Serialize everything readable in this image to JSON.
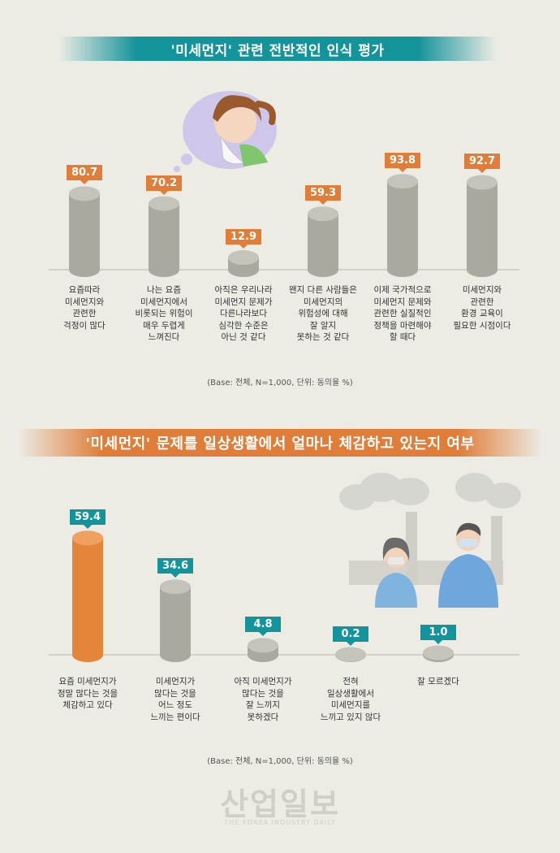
{
  "section1": {
    "title": "'미세먼지' 관련 전반적인 인식 평가",
    "footnote": "(Base: 전체, N=1,000, 단위: 동의율 %)"
  },
  "section2": {
    "title": "'미세먼지' 문제를 일상생활에서 얼마나 체감하고 있는지 여부",
    "footnote": "(Base: 전체, N=1,000, 단위: 동의율 %)"
  },
  "logo": {
    "main": "산업일보",
    "sub": "THE KOREA INDUSTRY DAILY"
  },
  "colors": {
    "teal": "#13939a",
    "orange": "#e07d38",
    "bar_gray": "#a9a99f",
    "bar_gray_top": "#c4c4bb",
    "bar_orange": "#e5853a",
    "bar_orange_top": "#f0a060"
  },
  "chart_data": [
    {
      "type": "bar",
      "title": "'미세먼지' 관련 전반적인 인식 평가",
      "unit": "동의율 %",
      "categories": [
        "요즘따라\n미세먼지와\n관련한\n걱정이 많다",
        "나는 요즘\n미세먼지에서\n비롯되는 위험이\n매우 두렵게\n느껴진다",
        "아직은 우리나라\n미세먼지 문제가\n다른나라보다\n심각한 수준은\n아닌 것 같다",
        "왠지 다른 사람들은\n미세먼지의\n위험성에 대해\n잘 알지\n못하는 것 같다",
        "이제 국가적으로\n미세먼지 문제와\n관련한 실질적인\n정책을 마련해야\n할 때다",
        "미세먼지와\n관련한\n환경 교육이\n필요한 시점이다"
      ],
      "values": [
        80.7,
        70.2,
        12.9,
        59.3,
        93.8,
        92.7
      ],
      "value_labels": [
        "80.7",
        "70.2",
        "12.9",
        "59.3",
        "93.8",
        "92.7"
      ],
      "ylim": [
        0,
        100
      ]
    },
    {
      "type": "bar",
      "title": "'미세먼지' 문제를 일상생활에서 얼마나 체감하고 있는지 여부",
      "unit": "동의율 %",
      "categories": [
        "요즘 미세먼지가\n정말 많다는 것을\n체감하고 있다",
        "미세먼지가\n많다는 것을\n어느 정도\n느끼는 편이다",
        "아직 미세먼지가\n많다는 것을\n잘 느끼지\n못하겠다",
        "전혀\n일상생활에서\n미세먼지를\n느끼고 있지 않다",
        "잘 모르겠다"
      ],
      "values": [
        59.4,
        34.6,
        4.8,
        0.2,
        1.0
      ],
      "value_labels": [
        "59.4",
        "34.6",
        "4.8",
        "0.2",
        "1.0"
      ],
      "ylim": [
        0,
        100
      ]
    }
  ]
}
